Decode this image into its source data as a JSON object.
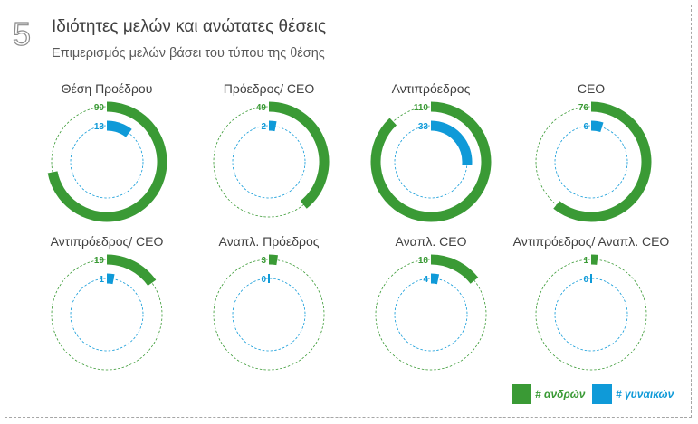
{
  "header": {
    "number": "5",
    "title": "Ιδιότητες μελών και ανώτατες θέσεις",
    "subtitle": "Επιμερισμός μελών βάσει του τύπου της θέσης"
  },
  "colors": {
    "men": "#3a9a35",
    "women": "#0f9ad8"
  },
  "legend": {
    "men_label": "# ανδρών",
    "women_label": "# γυναικών"
  },
  "chart_data": {
    "type": "radial-bar",
    "max_value": 125,
    "series": [
      "# ανδρών",
      "# γυναικών"
    ],
    "charts": [
      {
        "label": "Θέση Προέδρου",
        "men": 90,
        "women": 13
      },
      {
        "label": "Πρόεδρος/ CEO",
        "men": 49,
        "women": 2
      },
      {
        "label": "Αντιπρόεδρος",
        "men": 110,
        "women": 33
      },
      {
        "label": "CEO",
        "men": 76,
        "women": 6
      },
      {
        "label": "Αντιπρόεδρος/ CEO",
        "men": 19,
        "women": 1
      },
      {
        "label": "Αναπλ. Πρόεδρος",
        "men": 3,
        "women": 0
      },
      {
        "label": "Αναπλ. CEO",
        "men": 18,
        "women": 4
      },
      {
        "label": "Αντιπρόεδρος/ Αναπλ. CEO",
        "men": 1,
        "women": 0
      }
    ]
  }
}
